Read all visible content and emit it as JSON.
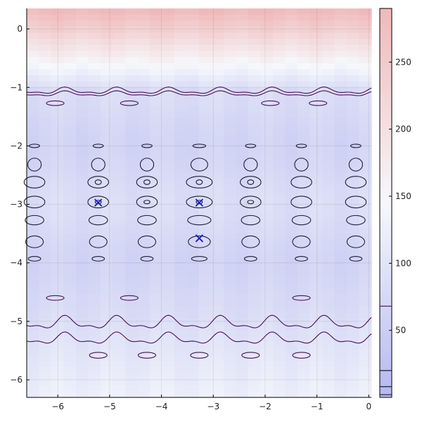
{
  "chart_data": {
    "type": "heatmap",
    "title": "",
    "xlabel": "",
    "ylabel": "",
    "xlim": [
      -6.6,
      0.05
    ],
    "ylim": [
      -6.3,
      0.35
    ],
    "x_ticks": [
      -6,
      -5,
      -4,
      -3,
      -2,
      -1,
      0
    ],
    "x_tick_labels": [
      "−6",
      "−5",
      "−4",
      "−3",
      "−2",
      "−1",
      "0"
    ],
    "y_ticks": [
      0,
      -1,
      -2,
      -3,
      -4,
      -5,
      -6
    ],
    "y_tick_labels": [
      "0",
      "−1",
      "−2",
      "−3",
      "−4",
      "−5",
      "−6"
    ],
    "grid": true,
    "colorscale": {
      "name": "diverging blue-white-red",
      "low_color": "#b5b8ee",
      "mid_color": "#f6f8fc",
      "high_color": "#f0b9b9",
      "range": [
        0,
        290
      ],
      "ticks": [
        50,
        100,
        150,
        200,
        250
      ],
      "tick_labels": [
        "50",
        "100",
        "150",
        "200",
        "250"
      ],
      "contour_levels": [
        2,
        8,
        20,
        68
      ]
    },
    "minima_markers": [
      {
        "x": -5.22,
        "y": -2.97
      },
      {
        "x": -3.27,
        "y": -2.97
      },
      {
        "x": -3.27,
        "y": -3.58
      }
    ],
    "marker_color": "#1a1acc",
    "contour_colors": {
      "outer": "#4b0f55",
      "inner": "#1e1e3a"
    }
  }
}
